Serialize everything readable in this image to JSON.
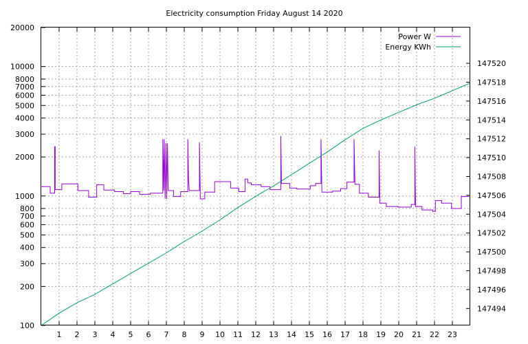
{
  "chart_data": {
    "type": "line",
    "title": "Electricity consumption Friday August 14 2020",
    "xlabel": "",
    "ylabel": "",
    "y2label": "",
    "xlim": [
      0,
      24
    ],
    "ylim": [
      100,
      20000
    ],
    "y_scale": "log",
    "y2lim": [
      147492.2,
      147523.8
    ],
    "grid": true,
    "legend": "top-right",
    "x_ticks": [
      "1",
      "2",
      "3",
      "4",
      "5",
      "6",
      "7",
      "8",
      "9",
      "10",
      "11",
      "12",
      "13",
      "14",
      "15",
      "16",
      "17",
      "18",
      "19",
      "20",
      "21",
      "22",
      "23"
    ],
    "y_ticks": [
      "100",
      "200",
      "300",
      "400",
      "500",
      "600",
      "700",
      "800",
      "1000",
      "2000",
      "3000",
      "4000",
      "5000",
      "6000",
      "7000",
      "8000",
      "10000",
      "20000"
    ],
    "y2_ticks": [
      "147494",
      "147496",
      "147498",
      "147500",
      "147502",
      "147504",
      "147506",
      "147508",
      "147510",
      "147512",
      "147514",
      "147516",
      "147518",
      "147520"
    ],
    "series": [
      {
        "name": "Power W",
        "axis": "y",
        "color": "#9400d3",
        "style": "steps",
        "points": [
          [
            0,
            1180
          ],
          [
            0.5,
            1180
          ],
          [
            0.5,
            1050
          ],
          [
            0.75,
            1050
          ],
          [
            0.75,
            2400
          ],
          [
            0.78,
            2400
          ],
          [
            0.78,
            1120
          ],
          [
            1.15,
            1120
          ],
          [
            1.15,
            1240
          ],
          [
            2.05,
            1240
          ],
          [
            2.05,
            1100
          ],
          [
            2.65,
            1100
          ],
          [
            2.65,
            980
          ],
          [
            3.1,
            980
          ],
          [
            3.1,
            1220
          ],
          [
            3.5,
            1220
          ],
          [
            3.5,
            1110
          ],
          [
            4.1,
            1110
          ],
          [
            4.1,
            1080
          ],
          [
            4.6,
            1080
          ],
          [
            4.6,
            1040
          ],
          [
            5.0,
            1040
          ],
          [
            5.0,
            1080
          ],
          [
            5.5,
            1080
          ],
          [
            5.5,
            1030
          ],
          [
            6.1,
            1030
          ],
          [
            6.1,
            1050
          ],
          [
            6.8,
            1050
          ],
          [
            6.8,
            2750
          ],
          [
            6.85,
            1100
          ],
          [
            6.88,
            2750
          ],
          [
            6.93,
            950
          ],
          [
            6.98,
            2550
          ],
          [
            7.02,
            950
          ],
          [
            7.06,
            2550
          ],
          [
            7.1,
            1100
          ],
          [
            7.4,
            1100
          ],
          [
            7.4,
            990
          ],
          [
            7.8,
            990
          ],
          [
            7.8,
            1080
          ],
          [
            8.2,
            1080
          ],
          [
            8.2,
            2750
          ],
          [
            8.24,
            1350
          ],
          [
            8.28,
            1100
          ],
          [
            8.85,
            1100
          ],
          [
            8.85,
            2600
          ],
          [
            8.9,
            950
          ],
          [
            9.15,
            950
          ],
          [
            9.15,
            1070
          ],
          [
            9.7,
            1070
          ],
          [
            9.7,
            1290
          ],
          [
            10.6,
            1290
          ],
          [
            10.6,
            1150
          ],
          [
            11.05,
            1150
          ],
          [
            11.05,
            1080
          ],
          [
            11.4,
            1080
          ],
          [
            11.4,
            1350
          ],
          [
            11.55,
            1350
          ],
          [
            11.55,
            1260
          ],
          [
            11.75,
            1260
          ],
          [
            11.75,
            1220
          ],
          [
            12.3,
            1220
          ],
          [
            12.3,
            1180
          ],
          [
            12.8,
            1180
          ],
          [
            12.8,
            1120
          ],
          [
            13.4,
            1120
          ],
          [
            13.4,
            2900
          ],
          [
            13.44,
            1250
          ],
          [
            13.9,
            1250
          ],
          [
            13.9,
            1150
          ],
          [
            14.3,
            1150
          ],
          [
            14.3,
            1130
          ],
          [
            15.05,
            1130
          ],
          [
            15.05,
            1200
          ],
          [
            15.35,
            1200
          ],
          [
            15.35,
            1250
          ],
          [
            15.65,
            1250
          ],
          [
            15.65,
            2750
          ],
          [
            15.7,
            1070
          ],
          [
            16.3,
            1070
          ],
          [
            16.3,
            1090
          ],
          [
            16.75,
            1090
          ],
          [
            16.75,
            1140
          ],
          [
            17.1,
            1140
          ],
          [
            17.1,
            1280
          ],
          [
            17.5,
            1280
          ],
          [
            17.5,
            2750
          ],
          [
            17.55,
            1230
          ],
          [
            17.8,
            1230
          ],
          [
            17.8,
            1050
          ],
          [
            18.3,
            1050
          ],
          [
            18.3,
            980
          ],
          [
            18.9,
            980
          ],
          [
            18.9,
            2250
          ],
          [
            18.94,
            880
          ],
          [
            19.3,
            880
          ],
          [
            19.3,
            830
          ],
          [
            19.95,
            830
          ],
          [
            19.95,
            820
          ],
          [
            20.7,
            820
          ],
          [
            20.7,
            860
          ],
          [
            20.9,
            860
          ],
          [
            20.9,
            2400
          ],
          [
            20.94,
            830
          ],
          [
            21.3,
            830
          ],
          [
            21.3,
            780
          ],
          [
            21.9,
            780
          ],
          [
            21.9,
            760
          ],
          [
            22.05,
            760
          ],
          [
            22.05,
            920
          ],
          [
            22.4,
            920
          ],
          [
            22.4,
            880
          ],
          [
            22.95,
            880
          ],
          [
            22.95,
            800
          ],
          [
            23.5,
            800
          ],
          [
            23.5,
            990
          ],
          [
            24,
            990
          ]
        ]
      },
      {
        "name": "Energy KWh",
        "axis": "y2",
        "color": "#009e73",
        "style": "line",
        "points": [
          [
            0,
            147492.2
          ],
          [
            1,
            147493.5
          ],
          [
            2,
            147494.6
          ],
          [
            3,
            147495.5
          ],
          [
            4,
            147496.6
          ],
          [
            5,
            147497.7
          ],
          [
            6,
            147498.8
          ],
          [
            7,
            147499.9
          ],
          [
            8,
            147501.1
          ],
          [
            9,
            147502.2
          ],
          [
            10,
            147503.4
          ],
          [
            11,
            147504.7
          ],
          [
            12,
            147505.9
          ],
          [
            13,
            147507.0
          ],
          [
            14,
            147508.2
          ],
          [
            15,
            147509.4
          ],
          [
            16,
            147510.6
          ],
          [
            17,
            147511.9
          ],
          [
            18,
            147513.1
          ],
          [
            19,
            147514.0
          ],
          [
            20,
            147514.8
          ],
          [
            21,
            147515.6
          ],
          [
            22,
            147516.3
          ],
          [
            23,
            147517.1
          ],
          [
            24,
            147517.9
          ]
        ]
      }
    ]
  }
}
